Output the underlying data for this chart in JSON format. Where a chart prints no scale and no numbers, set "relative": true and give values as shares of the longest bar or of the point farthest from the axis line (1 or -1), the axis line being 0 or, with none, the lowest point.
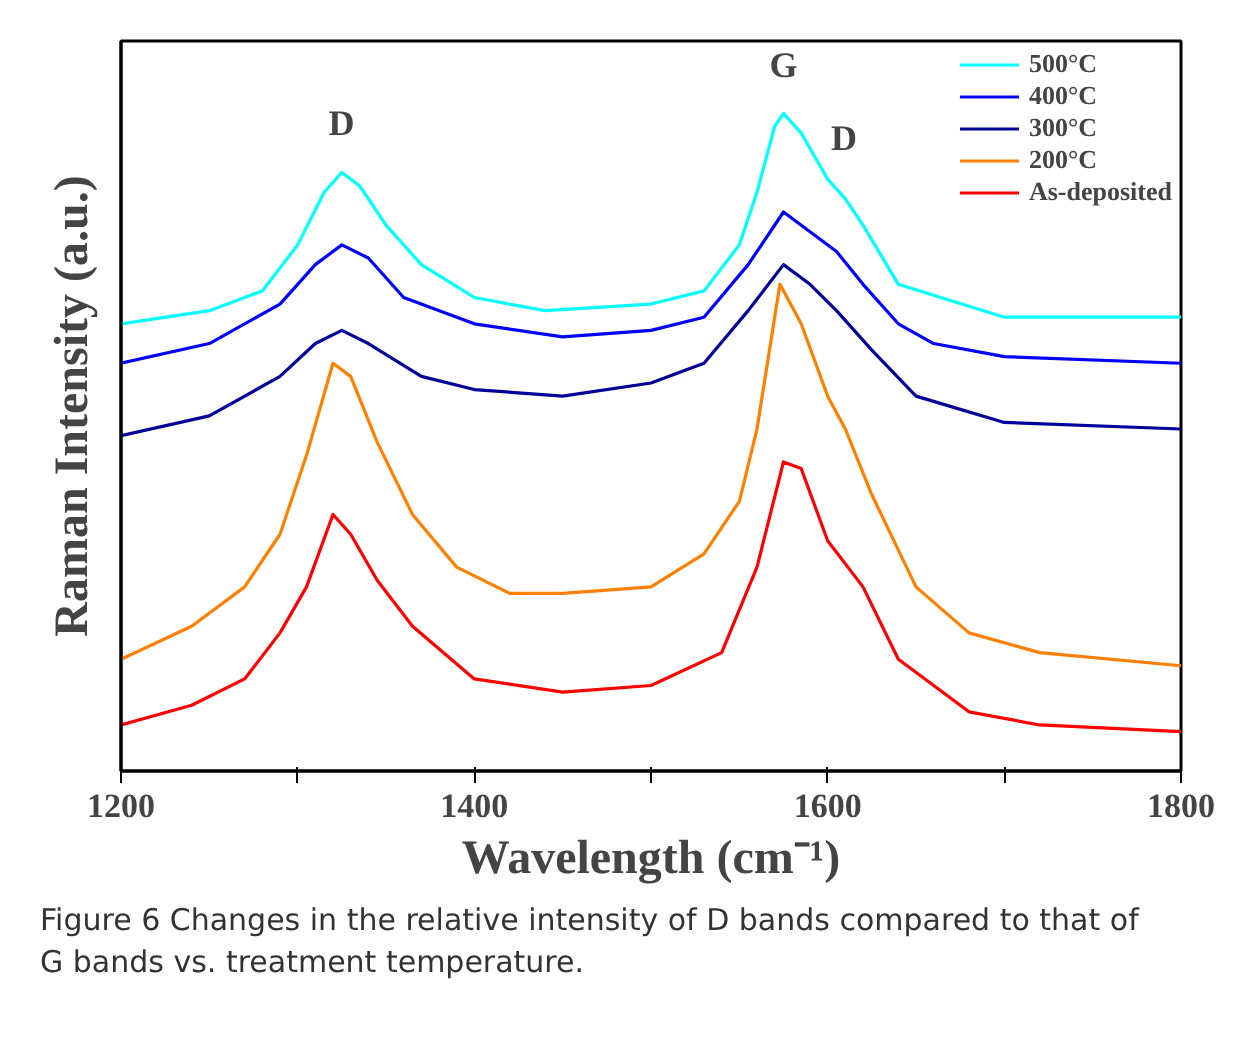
{
  "chart_data": {
    "type": "line",
    "relative": true,
    "xlabel": "Wavelength (cm⁻¹)",
    "ylabel": "Raman Intensity (a.u.)",
    "xlim": [
      1200,
      1800
    ],
    "xticks": [
      1200,
      {
        "value": 1300,
        "label": null
      },
      1400,
      {
        "value": 1500,
        "label": null
      },
      1600,
      {
        "value": 1700,
        "label": null
      },
      1800
    ],
    "grid": false,
    "legend": "top right",
    "marker": "none",
    "line_style": "solid",
    "annotations": [
      "D",
      "G",
      "D",
      "Figure 6 Changes in the relative intensity of D bands compared to that of G bands vs. treatment temperature."
    ],
    "series": [
      {
        "name": "500°C",
        "color": "#00ffff",
        "x": [
          1200,
          1250,
          1280,
          1300,
          1315,
          1325,
          1335,
          1350,
          1370,
          1400,
          1440,
          1500,
          1530,
          1550,
          1560,
          1570,
          1575,
          1585,
          1600,
          1610,
          1620,
          1640,
          1700,
          1800
        ],
        "values": [
          0.68,
          0.7,
          0.73,
          0.8,
          0.88,
          0.91,
          0.89,
          0.83,
          0.77,
          0.72,
          0.7,
          0.71,
          0.73,
          0.8,
          0.88,
          0.98,
          1.0,
          0.97,
          0.9,
          0.87,
          0.83,
          0.74,
          0.69,
          0.69
        ]
      },
      {
        "name": "400°C",
        "color": "#0000ff",
        "x": [
          1200,
          1250,
          1290,
          1310,
          1325,
          1340,
          1360,
          1400,
          1450,
          1500,
          1530,
          1555,
          1575,
          1590,
          1605,
          1620,
          1640,
          1660,
          1700,
          1800
        ],
        "values": [
          0.62,
          0.65,
          0.71,
          0.77,
          0.8,
          0.78,
          0.72,
          0.68,
          0.66,
          0.67,
          0.69,
          0.77,
          0.85,
          0.82,
          0.79,
          0.74,
          0.68,
          0.65,
          0.63,
          0.62
        ]
      },
      {
        "name": "300°C",
        "color": "#000099",
        "x": [
          1200,
          1250,
          1290,
          1310,
          1325,
          1340,
          1370,
          1400,
          1450,
          1500,
          1530,
          1555,
          1575,
          1590,
          1605,
          1625,
          1650,
          1700,
          1800
        ],
        "values": [
          0.51,
          0.54,
          0.6,
          0.65,
          0.67,
          0.65,
          0.6,
          0.58,
          0.57,
          0.59,
          0.62,
          0.7,
          0.77,
          0.74,
          0.7,
          0.64,
          0.57,
          0.53,
          0.52
        ]
      },
      {
        "name": "200°C",
        "color": "#ff8000",
        "x": [
          1200,
          1240,
          1270,
          1290,
          1305,
          1320,
          1330,
          1345,
          1365,
          1390,
          1420,
          1450,
          1500,
          1530,
          1550,
          1560,
          1570,
          1573,
          1585,
          1600,
          1610,
          1625,
          1650,
          1680,
          1720,
          1800
        ],
        "values": [
          0.17,
          0.22,
          0.28,
          0.36,
          0.48,
          0.62,
          0.6,
          0.5,
          0.39,
          0.31,
          0.27,
          0.27,
          0.28,
          0.33,
          0.41,
          0.52,
          0.69,
          0.74,
          0.68,
          0.57,
          0.52,
          0.42,
          0.28,
          0.21,
          0.18,
          0.16
        ]
      },
      {
        "name": "As-deposited",
        "color": "#ff0000",
        "x": [
          1200,
          1240,
          1270,
          1290,
          1305,
          1320,
          1330,
          1345,
          1365,
          1400,
          1450,
          1500,
          1540,
          1560,
          1575,
          1585,
          1600,
          1620,
          1640,
          1680,
          1720,
          1800
        ],
        "values": [
          0.07,
          0.1,
          0.14,
          0.21,
          0.28,
          0.39,
          0.36,
          0.29,
          0.22,
          0.14,
          0.12,
          0.13,
          0.18,
          0.31,
          0.47,
          0.46,
          0.35,
          0.28,
          0.17,
          0.09,
          0.07,
          0.06
        ]
      }
    ]
  }
}
